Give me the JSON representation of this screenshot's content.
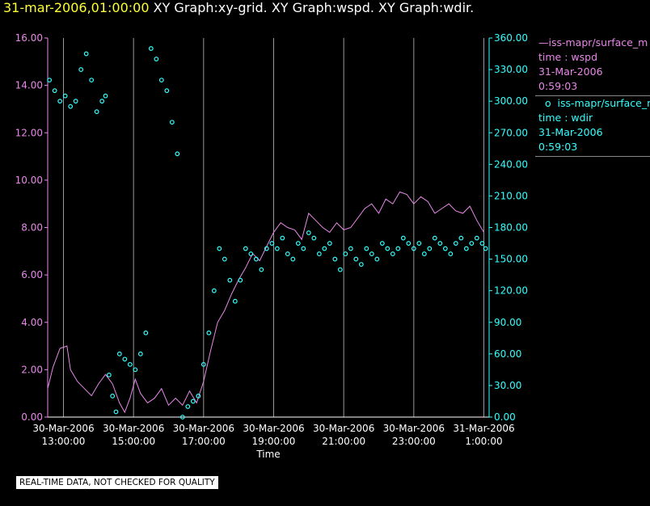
{
  "header": {
    "timestamp": "31-mar-2006,01:00:00",
    "graph_titles": "XY Graph:xy-grid.  XY Graph:wspd.  XY Graph:wdir."
  },
  "colors": {
    "wspd": "#e987e9",
    "wdir": "#33ffff",
    "grid": "#999999",
    "stamp": "#ffff33"
  },
  "legend": {
    "wspd": {
      "name": "iss-mapr/surface_m",
      "var": "time : wspd",
      "date": "31-Mar-2006",
      "time": "0:59:03"
    },
    "wdir": {
      "name": "iss-mapr/surface_m",
      "var": "time : wdir",
      "date": "31-Mar-2006",
      "time": "0:59:03"
    }
  },
  "disclaimer": "REAL-TIME DATA, NOT CHECKED FOR QUALITY",
  "chart_data": {
    "type": "line",
    "xlabel": "Time",
    "x_range_hours": [
      12.55,
      25.15
    ],
    "x_ticks": [
      {
        "hour": 13,
        "date": "30-Mar-2006",
        "time": "13:00:00"
      },
      {
        "hour": 15,
        "date": "30-Mar-2006",
        "time": "15:00:00"
      },
      {
        "hour": 17,
        "date": "30-Mar-2006",
        "time": "17:00:00"
      },
      {
        "hour": 19,
        "date": "30-Mar-2006",
        "time": "19:00:00"
      },
      {
        "hour": 21,
        "date": "30-Mar-2006",
        "time": "21:00:00"
      },
      {
        "hour": 23,
        "date": "30-Mar-2006",
        "time": "23:00:00"
      },
      {
        "hour": 25,
        "date": "31-Mar-2006",
        "time": "1:00:00"
      }
    ],
    "y_left": {
      "min": 0,
      "max": 16,
      "ticks": [
        "0.00",
        "2.00",
        "4.00",
        "6.00",
        "8.00",
        "10.00",
        "12.00",
        "14.00",
        "16.00"
      ]
    },
    "y_right": {
      "min": 0,
      "max": 360,
      "ticks": [
        "0.00",
        "30.00",
        "60.00",
        "90.00",
        "120.00",
        "150.00",
        "180.00",
        "210.00",
        "240.00",
        "270.00",
        "300.00",
        "330.00",
        "360.00"
      ]
    },
    "grid": "vertical-only",
    "series": [
      {
        "name": "time : wspd",
        "axis": "left",
        "style": "line",
        "x": [
          12.55,
          12.7,
          12.9,
          13.1,
          13.2,
          13.4,
          13.6,
          13.8,
          14.0,
          14.2,
          14.4,
          14.6,
          14.75,
          14.9,
          15.05,
          15.2,
          15.4,
          15.6,
          15.8,
          16.0,
          16.2,
          16.4,
          16.6,
          16.8,
          17.0,
          17.2,
          17.4,
          17.6,
          17.8,
          18.0,
          18.2,
          18.4,
          18.6,
          18.8,
          19.0,
          19.2,
          19.4,
          19.6,
          19.8,
          20.0,
          20.2,
          20.4,
          20.6,
          20.8,
          21.0,
          21.2,
          21.4,
          21.6,
          21.8,
          22.0,
          22.2,
          22.4,
          22.6,
          22.8,
          23.0,
          23.2,
          23.4,
          23.6,
          23.8,
          24.0,
          24.2,
          24.4,
          24.6,
          24.8,
          25.0
        ],
        "values": [
          1.2,
          2.1,
          2.9,
          3.0,
          2.0,
          1.5,
          1.2,
          0.9,
          1.4,
          1.8,
          1.4,
          0.6,
          0.2,
          0.8,
          1.6,
          1.0,
          0.6,
          0.8,
          1.2,
          0.5,
          0.8,
          0.5,
          1.1,
          0.6,
          1.5,
          2.8,
          4.0,
          4.5,
          5.2,
          5.8,
          6.3,
          6.9,
          6.6,
          7.2,
          7.8,
          8.2,
          8.0,
          7.9,
          7.5,
          8.6,
          8.3,
          8.0,
          7.8,
          8.2,
          7.9,
          8.0,
          8.4,
          8.8,
          9.0,
          8.6,
          9.2,
          9.0,
          9.5,
          9.4,
          9.0,
          9.3,
          9.1,
          8.6,
          8.8,
          9.0,
          8.7,
          8.6,
          8.9,
          8.3,
          7.8
        ]
      },
      {
        "name": "time : wdir",
        "axis": "right",
        "style": "circles",
        "x": [
          12.6,
          12.75,
          12.9,
          13.05,
          13.2,
          13.35,
          13.5,
          13.65,
          13.8,
          13.95,
          14.1,
          14.2,
          14.3,
          14.4,
          14.5,
          14.6,
          14.75,
          14.9,
          15.05,
          15.2,
          15.35,
          15.5,
          15.65,
          15.8,
          15.95,
          16.1,
          16.25,
          16.4,
          16.55,
          16.7,
          16.85,
          17.0,
          17.15,
          17.3,
          17.45,
          17.6,
          17.75,
          17.9,
          18.05,
          18.2,
          18.35,
          18.5,
          18.65,
          18.8,
          18.95,
          19.1,
          19.25,
          19.4,
          19.55,
          19.7,
          19.85,
          20.0,
          20.15,
          20.3,
          20.45,
          20.6,
          20.75,
          20.9,
          21.05,
          21.2,
          21.35,
          21.5,
          21.65,
          21.8,
          21.95,
          22.1,
          22.25,
          22.4,
          22.55,
          22.7,
          22.85,
          23.0,
          23.15,
          23.3,
          23.45,
          23.6,
          23.75,
          23.9,
          24.05,
          24.2,
          24.35,
          24.5,
          24.65,
          24.8,
          24.95,
          25.05
        ],
        "values": [
          320,
          310,
          300,
          305,
          295,
          300,
          330,
          345,
          320,
          290,
          300,
          305,
          40,
          20,
          5,
          60,
          55,
          50,
          45,
          60,
          80,
          350,
          340,
          320,
          310,
          280,
          250,
          0,
          10,
          15,
          20,
          50,
          80,
          120,
          160,
          150,
          130,
          110,
          130,
          160,
          155,
          150,
          140,
          160,
          165,
          160,
          170,
          155,
          150,
          165,
          160,
          175,
          170,
          155,
          160,
          165,
          150,
          140,
          155,
          160,
          150,
          145,
          160,
          155,
          150,
          165,
          160,
          155,
          160,
          170,
          165,
          160,
          165,
          155,
          160,
          170,
          165,
          160,
          155,
          165,
          170,
          160,
          165,
          170,
          165,
          160
        ]
      }
    ]
  }
}
